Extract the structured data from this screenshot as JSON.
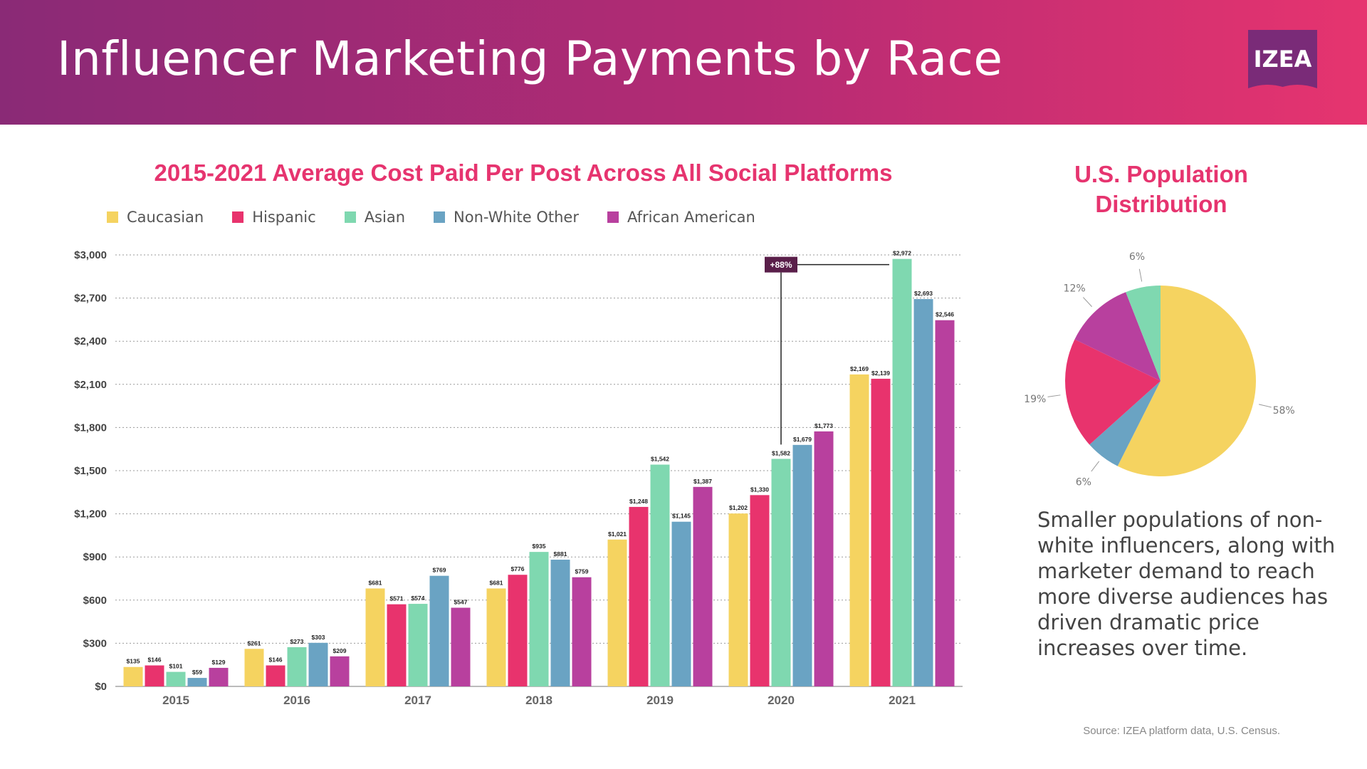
{
  "header": {
    "title": "Influencer Marketing Payments by Race",
    "logo_text": "IZEA"
  },
  "chart_data": [
    {
      "type": "bar",
      "title": "2015-2021 Average Cost Paid Per Post Across All Social Platforms",
      "categories": [
        "2015",
        "2016",
        "2017",
        "2018",
        "2019",
        "2020",
        "2021"
      ],
      "series": [
        {
          "name": "Caucasian",
          "color": "#f5d360",
          "values": [
            135,
            261,
            681,
            681,
            1021,
            1202,
            2169
          ],
          "labels": [
            "$135",
            "$261",
            "$681",
            "$681",
            "$1,021",
            "$1,202",
            "$2,169"
          ]
        },
        {
          "name": "Hispanic",
          "color": "#e8336d",
          "values": [
            146,
            146,
            571,
            776,
            1248,
            1330,
            2139
          ],
          "labels": [
            "$146",
            "$146",
            "$571",
            "$776",
            "$1,248",
            "$1,330",
            "$2,139"
          ]
        },
        {
          "name": "Asian",
          "color": "#7fd8b0",
          "values": [
            101,
            273,
            574,
            935,
            1542,
            1582,
            2972
          ],
          "labels": [
            "$101",
            "$273",
            "$574",
            "$935",
            "$1,542",
            "$1,582",
            "$2,972"
          ]
        },
        {
          "name": "Non-White Other",
          "color": "#6aa3c3",
          "values": [
            59,
            303,
            769,
            881,
            1145,
            1679,
            2693
          ],
          "labels": [
            "$59",
            "$303",
            "$769",
            "$881",
            "$1,145",
            "$1,679",
            "$2,693"
          ]
        },
        {
          "name": "African American",
          "color": "#b8409e",
          "values": [
            129,
            209,
            547,
            759,
            1387,
            1773,
            2546
          ],
          "labels": [
            "$129",
            "$209",
            "$547",
            "$759",
            "$1,387",
            "$1,773",
            "$2,546"
          ]
        }
      ],
      "yticks": [
        0,
        300,
        600,
        900,
        1200,
        1500,
        1800,
        2100,
        2400,
        2700,
        3000
      ],
      "ytick_labels": [
        "$0",
        "$300",
        "$600",
        "$900",
        "$1,200",
        "$1,500",
        "$1,800",
        "$2,100",
        "$2,400",
        "$2,700",
        "$3,000"
      ],
      "ylim": [
        0,
        3000
      ],
      "grid": "horizontal-dotted",
      "legend": "top-left",
      "annotation": {
        "text": "+88%",
        "from": {
          "category": "2020",
          "series": "Asian"
        },
        "to": {
          "category": "2021",
          "series": "Asian"
        },
        "color": "#5a1f4a"
      }
    },
    {
      "type": "pie",
      "title": "U.S. Population Distribution",
      "slices": [
        {
          "label": "58%",
          "value": 58,
          "color": "#f5d360"
        },
        {
          "label": "6%",
          "value": 6,
          "color": "#6aa3c3"
        },
        {
          "label": "19%",
          "value": 19,
          "color": "#e8336d"
        },
        {
          "label": "12%",
          "value": 12,
          "color": "#b8409e"
        },
        {
          "label": "6%",
          "value": 6,
          "color": "#7fd8b0"
        }
      ]
    }
  ],
  "note": "Smaller populations of non-white influencers, along with marketer demand to reach more diverse audiences has driven dramatic price increases over time.",
  "source": "Source: IZEA platform data, U.S. Census."
}
